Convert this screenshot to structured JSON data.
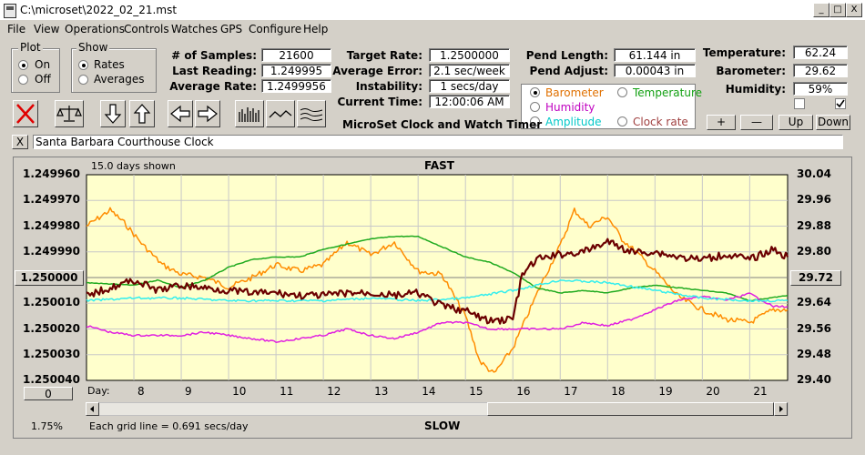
{
  "window": {
    "title": "C:\\microset\\2022_02_21.mst",
    "min_label": "_",
    "max_label": "□",
    "close_label": "X"
  },
  "menu": [
    "File",
    "View",
    "Operations",
    "Controls",
    "Watches",
    "GPS",
    "Configure",
    "Help"
  ],
  "plot_group": {
    "title": "Plot",
    "on": "On",
    "off": "Off",
    "selected": "On"
  },
  "show_group": {
    "title": "Show",
    "rates": "Rates",
    "averages": "Averages",
    "selected": "Rates"
  },
  "stats": {
    "samples_label": "# of Samples:",
    "samples": "21600",
    "last_label": "Last Reading:",
    "last": "1.249995",
    "avg_label": "Average Rate:",
    "avg": "1.2499956",
    "target_label": "Target Rate:",
    "target": "1.2500000",
    "avgerr_label": "Average Error:",
    "avgerr": "2.1 sec/week",
    "instab_label": "Instability:",
    "instab": "1 secs/day",
    "time_label": "Current Time:",
    "time": "12:00:06 AM",
    "pendlen_label": "Pend Length:",
    "pendlen": "61.144 in",
    "pendadj_label": "Pend Adjust:",
    "pendadj": "0.00043 in",
    "temp_label": "Temperature:",
    "temp": "62.24",
    "baro_label": "Barometer:",
    "baro": "29.62",
    "hum_label": "Humidity:",
    "hum": "59%"
  },
  "app_caption": "MicroSet Clock and Watch Timer",
  "sensor_options": {
    "barometer": "Barometer",
    "temperature": "Temperature",
    "humidity": "Humidity",
    "amplitude": "Amplitude",
    "clockrate": "Clock rate",
    "selected": "Barometer"
  },
  "adjust_buttons": {
    "plus": "+",
    "minus": "—",
    "up": "Up",
    "down": "Down"
  },
  "watch_name": "Santa Barbara Courthouse Clock",
  "watch_close": "X",
  "plot": {
    "days_shown": "15.0 days shown",
    "top_label": "FAST",
    "bottom_label": "SLOW",
    "day_label": "Day:",
    "grid_note": "Each grid line = 0.691 secs/day",
    "left_button": "1.250000",
    "left_bottom_button": "0",
    "right_button": "29.72",
    "zoom": "1.75%"
  },
  "colors": {
    "plot_bg": "#ffffcc",
    "rate": "#6b0000",
    "barometer": "#ff8c00",
    "temperature": "#1faa1f",
    "humidity": "#e020e0",
    "amplitude": "#33eeee",
    "option_barometer": "#e07000",
    "option_temperature": "#12a012",
    "option_humidity": "#c000c0",
    "option_amplitude": "#00c8c8"
  },
  "chart_data": {
    "type": "line",
    "title": "FAST",
    "xlabel": "Day:",
    "ylabel": "",
    "y2label": "",
    "x_ticks": [
      8,
      9,
      10,
      11,
      12,
      13,
      14,
      15,
      16,
      17,
      18,
      19,
      20,
      21
    ],
    "xlim": [
      7,
      21.8
    ],
    "ylim": [
      1.24996,
      1.25004
    ],
    "y_inverted": true,
    "y_ticks": [
      "1.249960",
      "1.249970",
      "1.249980",
      "1.249990",
      "1.250000",
      "1.250010",
      "1.250020",
      "1.250030",
      "1.250040"
    ],
    "y2lim": [
      29.4,
      30.04
    ],
    "y2_ticks": [
      "30.04",
      "29.96",
      "29.88",
      "29.80",
      "29.72",
      "29.64",
      "29.56",
      "29.48",
      "29.40"
    ],
    "grid": true,
    "series": [
      {
        "name": "Barometer",
        "axis": "right",
        "color": "#ff8c00",
        "x": [
          7,
          7.5,
          7.8,
          8.2,
          8.6,
          9,
          9.5,
          10,
          10.5,
          11,
          11.5,
          12,
          12.5,
          13,
          13.5,
          14,
          14.5,
          15,
          15.3,
          15.6,
          16,
          16.3,
          16.6,
          17,
          17.3,
          17.6,
          18,
          18.3,
          18.6,
          19,
          19.5,
          20,
          20.5,
          21,
          21.5,
          21.8
        ],
        "y": [
          29.88,
          29.93,
          29.89,
          29.82,
          29.76,
          29.73,
          29.72,
          29.69,
          29.72,
          29.76,
          29.74,
          29.76,
          29.83,
          29.79,
          29.83,
          29.74,
          29.73,
          29.6,
          29.46,
          29.42,
          29.5,
          29.6,
          29.7,
          29.82,
          29.93,
          29.88,
          29.91,
          29.84,
          29.8,
          29.74,
          29.66,
          29.62,
          29.59,
          29.58,
          29.62,
          29.62
        ]
      },
      {
        "name": "Temperature",
        "axis": "left",
        "color": "#1faa1f",
        "x": [
          7,
          8,
          8.5,
          9,
          9.5,
          10,
          10.5,
          11,
          11.5,
          12,
          12.5,
          13,
          13.5,
          14,
          14.5,
          15,
          15.5,
          16,
          16.5,
          17,
          17.5,
          18,
          18.5,
          19,
          19.5,
          20,
          20.5,
          21,
          21.8
        ],
        "y": [
          1.250002,
          1.250003,
          1.250001,
          1.250004,
          1.250001,
          1.249996,
          1.249993,
          1.249992,
          1.249992,
          1.249989,
          1.249987,
          1.249985,
          1.249984,
          1.249984,
          1.249988,
          1.249992,
          1.249994,
          1.249998,
          1.250004,
          1.250006,
          1.250005,
          1.250006,
          1.250004,
          1.250003,
          1.250004,
          1.250005,
          1.250006,
          1.250009,
          1.250007
        ]
      },
      {
        "name": "Humidity",
        "axis": "right",
        "color": "#e020e0",
        "x": [
          7,
          7.5,
          8,
          8.5,
          9,
          9.5,
          10,
          10.5,
          11,
          11.5,
          12,
          12.5,
          13,
          13.5,
          14,
          14.5,
          15,
          15.5,
          16,
          16.5,
          17,
          17.5,
          18,
          18.5,
          19,
          19.5,
          20,
          20.5,
          21,
          21.5,
          21.8
        ],
        "y": [
          29.57,
          29.55,
          29.54,
          29.54,
          29.54,
          29.55,
          29.54,
          29.53,
          29.52,
          29.53,
          29.54,
          29.56,
          29.54,
          29.53,
          29.55,
          29.58,
          29.58,
          29.56,
          29.56,
          29.56,
          29.56,
          29.58,
          29.57,
          29.59,
          29.62,
          29.65,
          29.66,
          29.65,
          29.67,
          29.63,
          29.63
        ]
      },
      {
        "name": "Amplitude",
        "axis": "left",
        "color": "#33eeee",
        "x": [
          7,
          8,
          9,
          10,
          11,
          12,
          13,
          14,
          15,
          16,
          17,
          18,
          19,
          20,
          21,
          21.8
        ],
        "y": [
          1.250009,
          1.250008,
          1.250008,
          1.250009,
          1.250009,
          1.250009,
          1.250008,
          1.250009,
          1.250008,
          1.250005,
          1.250001,
          1.250002,
          1.250005,
          1.250008,
          1.250009,
          1.250009
        ]
      },
      {
        "name": "Clock rate",
        "axis": "left",
        "color": "#6b0000",
        "x": [
          7,
          7.5,
          8,
          8.5,
          9,
          9.5,
          10,
          10.5,
          11,
          11.5,
          12,
          12.5,
          13,
          13.5,
          14,
          14.5,
          15,
          15.5,
          16,
          16.2,
          16.5,
          17,
          17.5,
          18,
          18.5,
          19,
          19.5,
          20,
          20.5,
          21,
          21.5,
          21.8
        ],
        "y": [
          1.250007,
          1.250004,
          1.250001,
          1.250005,
          1.250003,
          1.250004,
          1.250005,
          1.250006,
          1.250006,
          1.250007,
          1.250007,
          1.250006,
          1.250006,
          1.250007,
          1.250006,
          1.250011,
          1.250013,
          1.250017,
          1.250016,
          1.249999,
          1.249993,
          1.249991,
          1.24999,
          1.249986,
          1.24999,
          1.24999,
          1.249992,
          1.249993,
          1.249991,
          1.249993,
          1.249989,
          1.249992
        ]
      }
    ]
  }
}
